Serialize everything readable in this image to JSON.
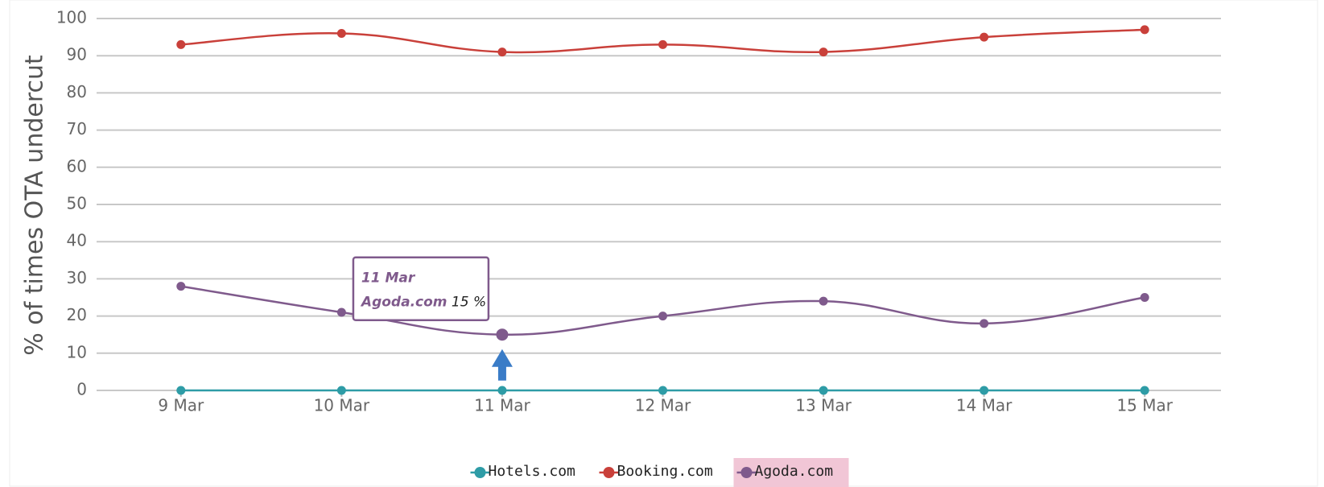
{
  "chart_data": {
    "type": "line",
    "y_label": "% of times OTA undercut",
    "categories": [
      "9 Mar",
      "10 Mar",
      "11 Mar",
      "12 Mar",
      "13 Mar",
      "14 Mar",
      "15 Mar"
    ],
    "series": [
      {
        "name": "Hotels.com",
        "color": "#2e9ca6",
        "values": [
          0,
          0,
          0,
          0,
          0,
          0,
          0
        ]
      },
      {
        "name": "Booking.com",
        "color": "#c9403a",
        "values": [
          93,
          96,
          91,
          93,
          91,
          95,
          97
        ]
      },
      {
        "name": "Agoda.com",
        "color": "#7f5a8c",
        "values": [
          28,
          21,
          15,
          20,
          24,
          18,
          25
        ]
      }
    ],
    "ylim": [
      0,
      100
    ],
    "yticks": [
      0,
      10,
      20,
      30,
      40,
      50,
      60,
      70,
      80,
      90,
      100
    ],
    "grid": true,
    "tooltip": {
      "category": "11 Mar",
      "series": "Agoda.com",
      "label": "15 %"
    }
  }
}
